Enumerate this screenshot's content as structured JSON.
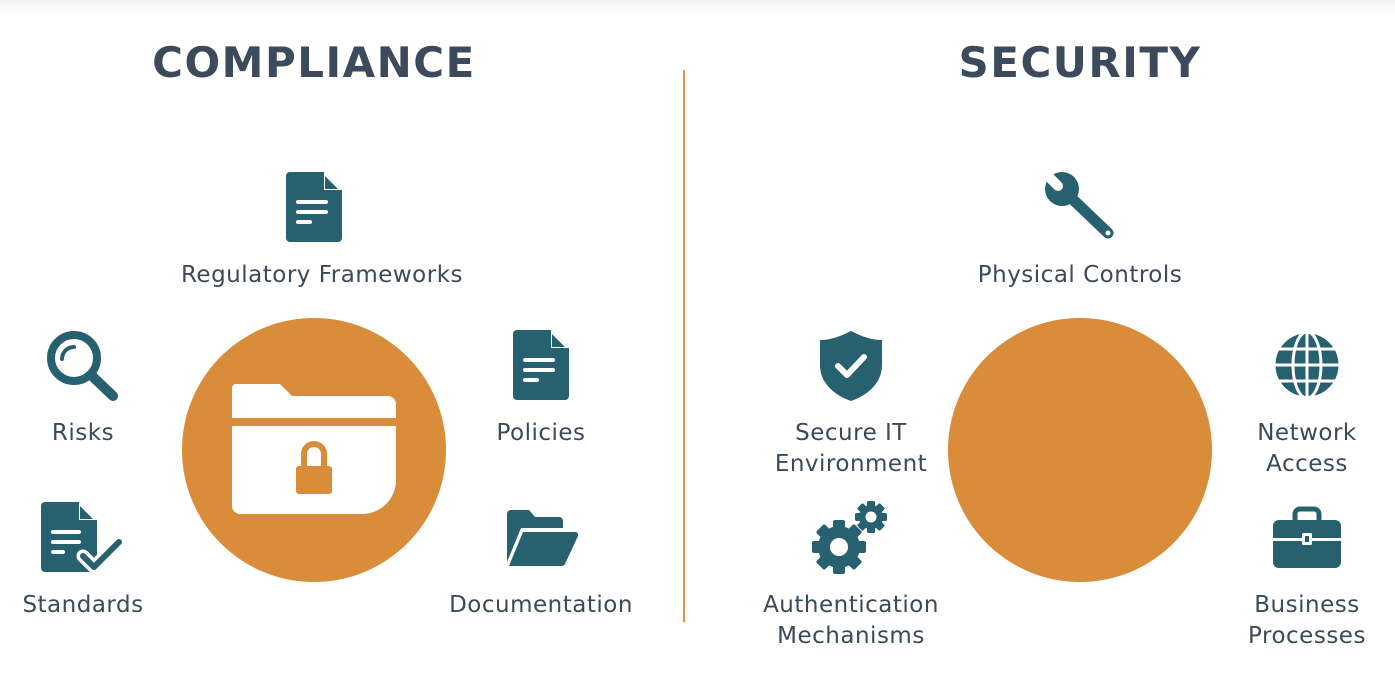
{
  "compliance": {
    "title": "COMPLIANCE",
    "items": [
      {
        "label": "Regulatory Frameworks",
        "icon": "document-icon"
      },
      {
        "label": "Risks",
        "icon": "magnifier-icon"
      },
      {
        "label": "Policies",
        "icon": "document-icon"
      },
      {
        "label": "Standards",
        "icon": "document-checkmark-icon"
      },
      {
        "label": "Documentation",
        "icon": "open-folder-icon"
      }
    ],
    "center_icon": "locked-folder-icon"
  },
  "security": {
    "title": "SECURITY",
    "items": [
      {
        "label": "Physical Controls",
        "icon": "wrench-icon"
      },
      {
        "label_lines": [
          "Secure IT",
          "Environment"
        ],
        "icon": "shield-check-icon"
      },
      {
        "label_lines": [
          "Network",
          "Access"
        ],
        "icon": "globe-icon"
      },
      {
        "label_lines": [
          "Authentication",
          "Mechanisms"
        ],
        "icon": "gears-icon"
      },
      {
        "label_lines": [
          "Business",
          "Processes"
        ],
        "icon": "briefcase-icon"
      }
    ]
  },
  "colors": {
    "heading": "#3d4a5c",
    "icon": "#27606f",
    "accent": "#d98d3a",
    "divider": "#e0954a",
    "text": "#3a4a5a"
  }
}
